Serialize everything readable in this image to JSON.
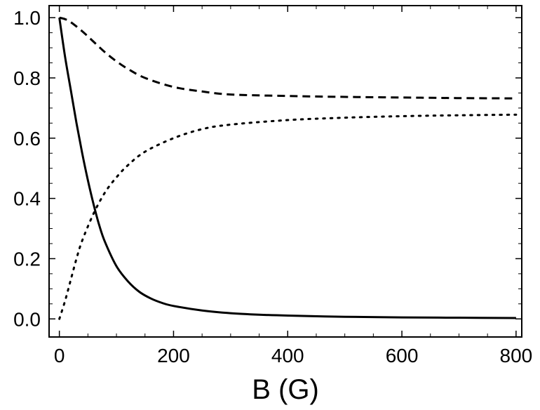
{
  "chart_data": {
    "type": "line",
    "title": "",
    "xlabel": "B (G)",
    "ylabel": "",
    "xlim": [
      -18,
      810
    ],
    "ylim": [
      -0.06,
      1.04
    ],
    "x_ticks": [
      0,
      200,
      400,
      600,
      800
    ],
    "y_ticks": [
      0.0,
      0.2,
      0.4,
      0.6,
      0.8,
      1.0
    ],
    "x_tick_labels": [
      "0",
      "200",
      "400",
      "600",
      "800"
    ],
    "y_tick_labels": [
      "0.0",
      "0.2",
      "0.4",
      "0.6",
      "0.8",
      "1.0"
    ],
    "grid": false,
    "legend": "none",
    "series": [
      {
        "style": "solid",
        "x": [
          0,
          10,
          20,
          30,
          40,
          50,
          60,
          70,
          80,
          100,
          120,
          140,
          160,
          180,
          200,
          250,
          300,
          350,
          400,
          500,
          600,
          700,
          800
        ],
        "y": [
          1.0,
          0.87,
          0.76,
          0.65,
          0.55,
          0.46,
          0.38,
          0.31,
          0.255,
          0.175,
          0.125,
          0.09,
          0.068,
          0.053,
          0.043,
          0.028,
          0.019,
          0.014,
          0.011,
          0.007,
          0.005,
          0.004,
          0.003
        ]
      },
      {
        "style": "dashed",
        "x": [
          0,
          10,
          20,
          40,
          60,
          80,
          100,
          120,
          150,
          200,
          250,
          300,
          400,
          500,
          600,
          700,
          800
        ],
        "y": [
          1.0,
          0.995,
          0.985,
          0.955,
          0.92,
          0.885,
          0.855,
          0.83,
          0.8,
          0.77,
          0.755,
          0.745,
          0.74,
          0.737,
          0.735,
          0.733,
          0.732
        ]
      },
      {
        "style": "dotted",
        "x": [
          0,
          10,
          20,
          30,
          40,
          60,
          80,
          100,
          120,
          150,
          200,
          250,
          300,
          400,
          500,
          600,
          700,
          800
        ],
        "y": [
          0.0,
          0.06,
          0.13,
          0.2,
          0.26,
          0.35,
          0.42,
          0.47,
          0.51,
          0.555,
          0.6,
          0.63,
          0.645,
          0.66,
          0.668,
          0.673,
          0.676,
          0.678
        ]
      }
    ],
    "colors": {
      "line": "#000000",
      "frame": "#000000"
    }
  }
}
